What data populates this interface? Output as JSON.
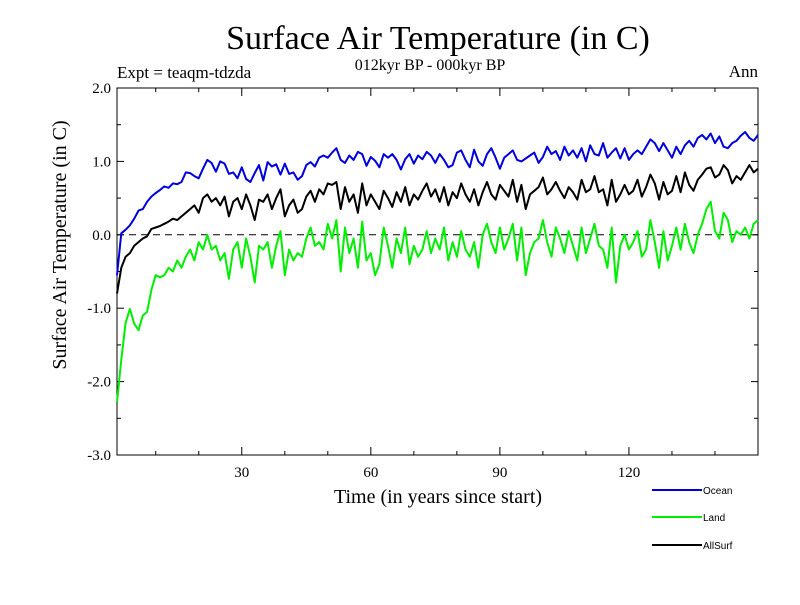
{
  "chart_data": {
    "type": "line",
    "title": "Surface Air Temperature (in C)",
    "subtitle": "012kyr BP - 000kyr BP",
    "experiment_label": "Expt = teaqm-tdzda",
    "season_label": "Ann",
    "xlabel": "Time (in years since start)",
    "ylabel": "Surface Air Temperature (in C)",
    "xlim": [
      1,
      150
    ],
    "ylim": [
      -3.0,
      2.0
    ],
    "xticks": [
      30,
      60,
      90,
      120
    ],
    "xtick_labels": [
      "30",
      "60",
      "90",
      "120"
    ],
    "yticks": [
      2.0,
      1.0,
      0.0,
      -1.0,
      -2.0,
      -3.0
    ],
    "ytick_labels": [
      "2.0",
      "1.0",
      "0.0",
      "-1.0",
      "-2.0",
      "-3.0"
    ],
    "reference_line": {
      "y": 0.0,
      "style": "dashed"
    },
    "legend_position": "bottom-right",
    "series": [
      {
        "name": "Ocean",
        "color": "#0000dd",
        "values": [
          -0.55,
          0.02,
          0.07,
          0.13,
          0.22,
          0.33,
          0.35,
          0.45,
          0.52,
          0.57,
          0.61,
          0.66,
          0.64,
          0.7,
          0.69,
          0.72,
          0.85,
          0.84,
          0.8,
          0.77,
          0.9,
          1.02,
          0.98,
          0.86,
          1.0,
          0.97,
          0.83,
          0.85,
          0.77,
          0.92,
          0.76,
          0.72,
          0.84,
          0.95,
          0.74,
          0.99,
          0.93,
          0.96,
          0.82,
          0.97,
          0.83,
          0.85,
          0.75,
          0.8,
          0.95,
          0.99,
          0.93,
          1.05,
          1.08,
          1.05,
          1.12,
          1.18,
          1.02,
          0.98,
          1.08,
          1.02,
          1.13,
          1.1,
          0.94,
          1.06,
          1.01,
          0.92,
          1.1,
          1.05,
          1.1,
          1.02,
          0.89,
          1.03,
          1.1,
          0.97,
          1.08,
          1.03,
          1.13,
          1.08,
          0.98,
          1.1,
          1.02,
          0.92,
          0.95,
          1.12,
          1.15,
          1.02,
          0.92,
          1.16,
          1.0,
          0.94,
          1.1,
          1.18,
          1.05,
          0.9,
          1.05,
          1.1,
          1.15,
          1.02,
          1.0,
          1.04,
          1.08,
          1.12,
          0.98,
          1.06,
          1.2,
          1.1,
          1.14,
          1.02,
          1.2,
          1.08,
          1.15,
          1.05,
          1.18,
          1.0,
          1.22,
          1.1,
          1.08,
          1.25,
          1.05,
          1.12,
          1.18,
          1.04,
          1.18,
          1.02,
          1.1,
          1.15,
          1.1,
          1.2,
          1.3,
          1.25,
          1.14,
          1.25,
          1.15,
          1.05,
          1.2,
          1.1,
          1.22,
          1.28,
          1.2,
          1.32,
          1.36,
          1.3,
          1.38,
          1.25,
          1.34,
          1.2,
          1.18,
          1.25,
          1.28,
          1.35,
          1.4,
          1.32,
          1.28,
          1.36
        ]
      },
      {
        "name": "Land",
        "color": "#00ee00",
        "values": [
          -2.28,
          -1.7,
          -1.2,
          -1.01,
          -1.21,
          -1.3,
          -1.1,
          -1.05,
          -0.75,
          -0.55,
          -0.58,
          -0.55,
          -0.45,
          -0.5,
          -0.35,
          -0.45,
          -0.3,
          -0.2,
          -0.35,
          -0.1,
          -0.2,
          0.0,
          -0.2,
          -0.15,
          -0.35,
          -0.25,
          -0.6,
          -0.2,
          -0.1,
          -0.45,
          -0.05,
          -0.3,
          -0.65,
          -0.15,
          -0.2,
          -0.1,
          -0.45,
          -0.15,
          0.05,
          -0.55,
          -0.2,
          -0.35,
          -0.25,
          -0.3,
          -0.05,
          0.1,
          -0.15,
          -0.1,
          -0.2,
          0.15,
          -0.05,
          0.2,
          -0.5,
          0.1,
          -0.25,
          -0.05,
          -0.45,
          0.18,
          -0.35,
          -0.25,
          -0.55,
          -0.4,
          0.1,
          -0.15,
          -0.45,
          -0.05,
          -0.25,
          0.1,
          -0.4,
          -0.15,
          -0.3,
          -0.2,
          0.05,
          -0.25,
          -0.05,
          -0.2,
          0.1,
          -0.35,
          -0.1,
          -0.3,
          0.05,
          -0.2,
          -0.3,
          -0.1,
          -0.45,
          0.0,
          0.15,
          -0.1,
          -0.25,
          0.1,
          -0.2,
          -0.05,
          0.15,
          -0.35,
          0.1,
          -0.55,
          -0.25,
          -0.1,
          -0.05,
          0.2,
          -0.1,
          -0.3,
          0.1,
          -0.05,
          -0.25,
          0.05,
          -0.15,
          -0.35,
          0.1,
          -0.25,
          -0.05,
          0.15,
          -0.15,
          -0.2,
          -0.45,
          0.1,
          -0.65,
          -0.15,
          0.0,
          -0.2,
          -0.1,
          0.05,
          -0.3,
          -0.2,
          0.2,
          -0.1,
          -0.45,
          0.05,
          -0.35,
          -0.15,
          0.1,
          -0.2,
          0.15,
          -0.1,
          -0.25,
          0.0,
          0.15,
          0.35,
          0.45,
          0.05,
          -0.05,
          0.3,
          0.2,
          -0.1,
          0.05,
          0.0,
          0.1,
          -0.05,
          0.15,
          0.2
        ]
      },
      {
        "name": "AllSurf",
        "color": "#000000",
        "values": [
          -0.8,
          -0.45,
          -0.3,
          -0.25,
          -0.15,
          -0.1,
          -0.05,
          -0.02,
          0.08,
          0.1,
          0.12,
          0.15,
          0.18,
          0.22,
          0.2,
          0.25,
          0.3,
          0.35,
          0.4,
          0.3,
          0.5,
          0.55,
          0.45,
          0.5,
          0.4,
          0.52,
          0.25,
          0.45,
          0.5,
          0.35,
          0.55,
          0.4,
          0.2,
          0.48,
          0.45,
          0.55,
          0.35,
          0.5,
          0.62,
          0.25,
          0.4,
          0.48,
          0.3,
          0.35,
          0.52,
          0.6,
          0.45,
          0.62,
          0.55,
          0.7,
          0.68,
          0.72,
          0.35,
          0.65,
          0.45,
          0.55,
          0.3,
          0.7,
          0.4,
          0.55,
          0.45,
          0.35,
          0.6,
          0.5,
          0.38,
          0.58,
          0.45,
          0.65,
          0.4,
          0.55,
          0.48,
          0.6,
          0.7,
          0.52,
          0.62,
          0.45,
          0.65,
          0.4,
          0.58,
          0.5,
          0.7,
          0.55,
          0.45,
          0.62,
          0.4,
          0.58,
          0.72,
          0.55,
          0.48,
          0.68,
          0.6,
          0.52,
          0.75,
          0.45,
          0.68,
          0.35,
          0.55,
          0.6,
          0.65,
          0.78,
          0.55,
          0.62,
          0.72,
          0.6,
          0.5,
          0.65,
          0.58,
          0.48,
          0.75,
          0.58,
          0.62,
          0.8,
          0.58,
          0.62,
          0.4,
          0.75,
          0.45,
          0.55,
          0.68,
          0.55,
          0.6,
          0.75,
          0.52,
          0.65,
          0.82,
          0.7,
          0.48,
          0.72,
          0.55,
          0.6,
          0.8,
          0.58,
          0.85,
          0.68,
          0.6,
          0.75,
          0.82,
          0.9,
          0.92,
          0.78,
          0.82,
          0.95,
          0.88,
          0.7,
          0.8,
          0.75,
          0.85,
          0.95,
          0.85,
          0.9
        ]
      }
    ]
  }
}
